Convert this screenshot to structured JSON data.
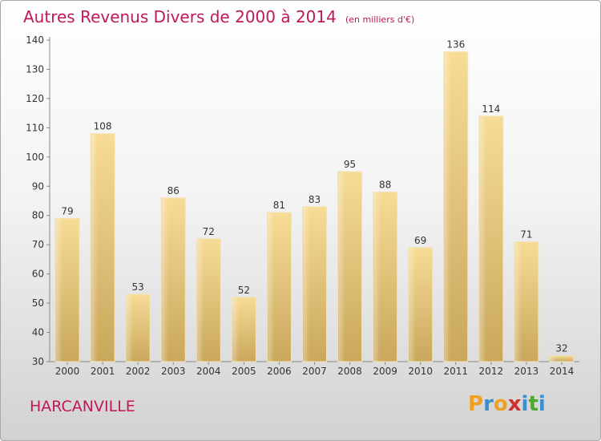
{
  "title": "Autres Revenus Divers de 2000 à 2014",
  "subtitle": "(en milliers d'€)",
  "commune": "HARCANVILLE",
  "logo": {
    "letters": [
      "P",
      "r",
      "o",
      "x",
      "i",
      "t",
      "i"
    ],
    "colors": [
      "#f0a020",
      "#3a8fd0",
      "#f0a020",
      "#d23030",
      "#3a8fd0",
      "#50a830",
      "#3a8fd0"
    ]
  },
  "chart_data": {
    "type": "bar",
    "title": "Autres Revenus Divers de 2000 à 2014",
    "categories": [
      "2000",
      "2001",
      "2002",
      "2003",
      "2004",
      "2005",
      "2006",
      "2007",
      "2008",
      "2009",
      "2010",
      "2011",
      "2012",
      "2013",
      "2014"
    ],
    "values": [
      79,
      108,
      53,
      86,
      72,
      52,
      81,
      83,
      95,
      88,
      69,
      136,
      114,
      71,
      32
    ],
    "ylim": [
      30,
      140
    ],
    "yticks": [
      30,
      40,
      50,
      60,
      70,
      80,
      90,
      100,
      110,
      120,
      130,
      140
    ],
    "grid": false,
    "bar_color": "#e6c47a"
  }
}
